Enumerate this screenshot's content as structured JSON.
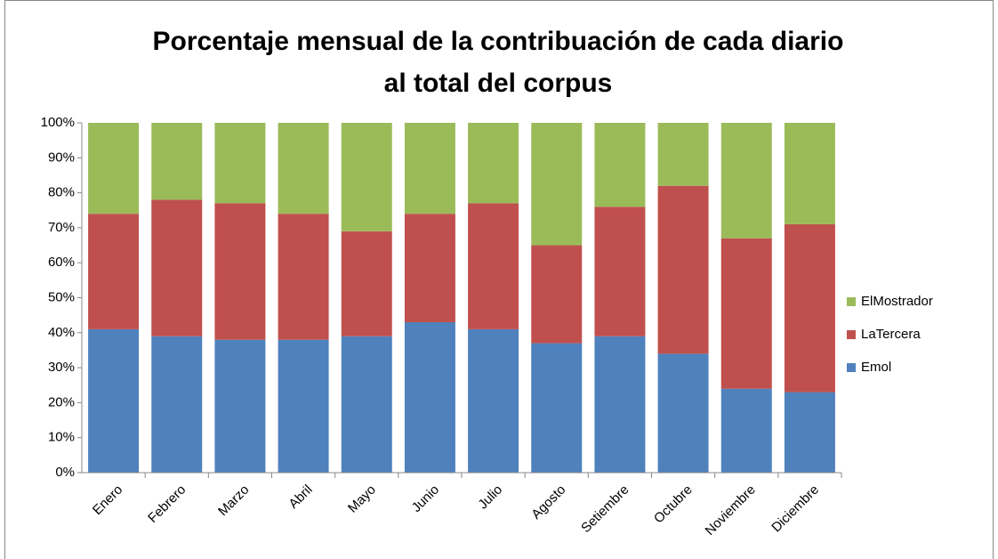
{
  "chart_data": {
    "type": "stacked_bar",
    "title": "Porcentaje mensual de la contribuación de cada diario al total del corpus",
    "categories": [
      "Enero",
      "Febrero",
      "Marzo",
      "Abril",
      "Mayo",
      "Junio",
      "Julio",
      "Agosto",
      "Setiembre",
      "Octubre",
      "Noviembre",
      "Diciembre"
    ],
    "series": [
      {
        "name": "Emol",
        "color": "#4f81bd",
        "values": [
          41,
          39,
          38,
          38,
          39,
          43,
          41,
          37,
          39,
          34,
          24,
          23
        ]
      },
      {
        "name": "LaTercera",
        "color": "#c0504d",
        "values": [
          33,
          39,
          39,
          36,
          30,
          31,
          36,
          28,
          37,
          48,
          43,
          48
        ]
      },
      {
        "name": "ElMostrador",
        "color": "#9bbb59",
        "values": [
          26,
          22,
          23,
          26,
          31,
          26,
          23,
          35,
          24,
          18,
          33,
          29
        ]
      }
    ],
    "ylim": [
      0,
      100
    ],
    "yticks": [
      {
        "value": 0,
        "label": "0%"
      },
      {
        "value": 10,
        "label": "10%"
      },
      {
        "value": 20,
        "label": "20%"
      },
      {
        "value": 30,
        "label": "30%"
      },
      {
        "value": 40,
        "label": "40%"
      },
      {
        "value": 50,
        "label": "50%"
      },
      {
        "value": 60,
        "label": "60%"
      },
      {
        "value": 70,
        "label": "70%"
      },
      {
        "value": 80,
        "label": "80%"
      },
      {
        "value": 90,
        "label": "90%"
      },
      {
        "value": 100,
        "label": "100%"
      }
    ],
    "legend": "right"
  }
}
